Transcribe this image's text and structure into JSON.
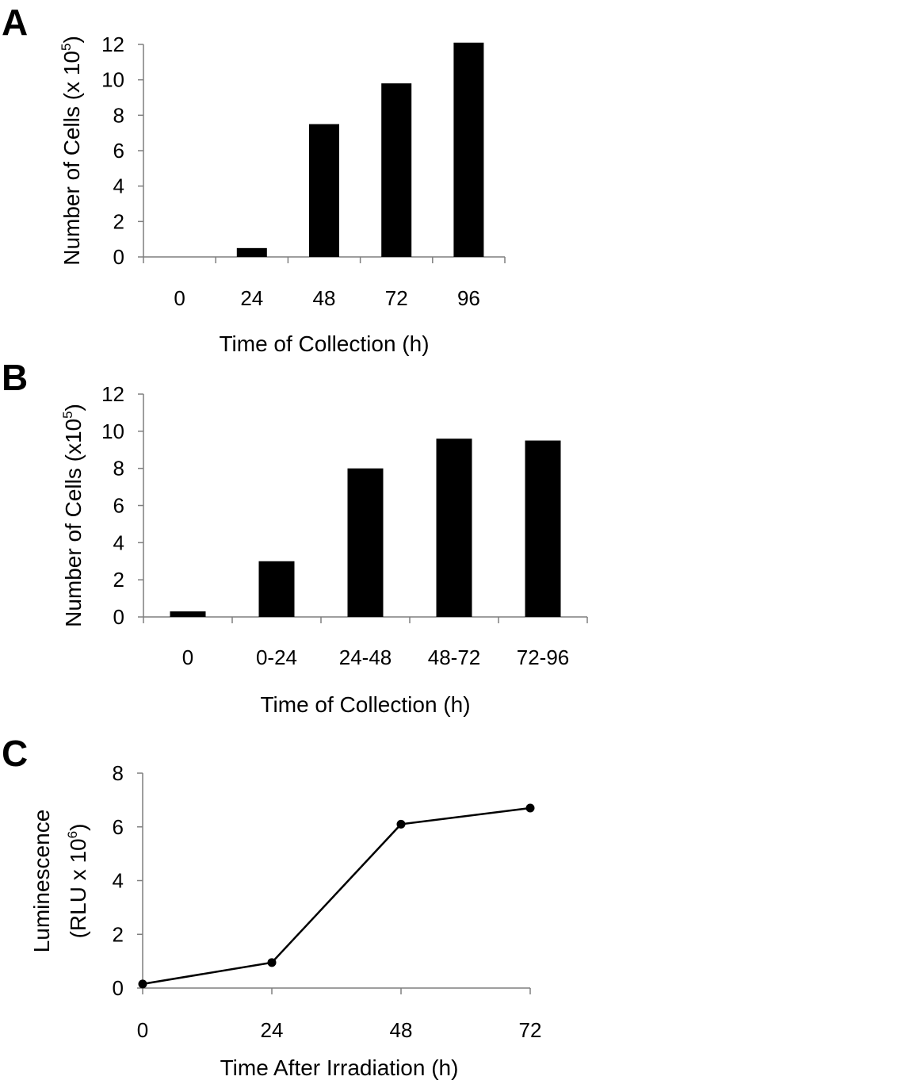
{
  "figure": {
    "panels": [
      "A",
      "B",
      "C"
    ]
  },
  "chart_data": [
    {
      "panel": "A",
      "type": "bar",
      "title": "",
      "categories": [
        "0",
        "24",
        "48",
        "72",
        "96"
      ],
      "values": [
        0,
        0.5,
        7.5,
        9.8,
        12.1
      ],
      "xlabel": "Time of Collection (h)",
      "ylabel_main": "Number of Cells (x 10",
      "ylabel_sup": "5",
      "ylabel_tail": ")",
      "ylim": [
        0,
        12
      ],
      "yticks": [
        0,
        2,
        4,
        6,
        8,
        10,
        12
      ],
      "bar_color": "#000000",
      "grid": false
    },
    {
      "panel": "B",
      "type": "bar",
      "title": "",
      "categories": [
        "0",
        "0-24",
        "24-48",
        "48-72",
        "72-96"
      ],
      "values": [
        0.3,
        3.0,
        8.0,
        9.6,
        9.5
      ],
      "xlabel": "Time of Collection (h)",
      "ylabel_main": "Number of Cells (x10",
      "ylabel_sup": "5",
      "ylabel_tail": ")",
      "ylim": [
        0,
        12
      ],
      "yticks": [
        0,
        2,
        4,
        6,
        8,
        10,
        12
      ],
      "bar_color": "#000000",
      "grid": false
    },
    {
      "panel": "C",
      "type": "line",
      "title": "",
      "x": [
        0,
        24,
        48,
        72
      ],
      "values": [
        0.15,
        0.95,
        6.1,
        6.7
      ],
      "xticks": [
        "0",
        "24",
        "48",
        "72"
      ],
      "xlim": [
        0,
        72
      ],
      "xlabel": "Time After Irradiation (h)",
      "ylabel_line1": "Luminescence",
      "ylabel_main": "(RLU x 10",
      "ylabel_sup": "6",
      "ylabel_tail": ")",
      "ylim": [
        0,
        8
      ],
      "yticks": [
        0,
        2,
        4,
        6,
        8
      ],
      "line_color": "#000000",
      "marker": "circle",
      "grid": false
    }
  ]
}
